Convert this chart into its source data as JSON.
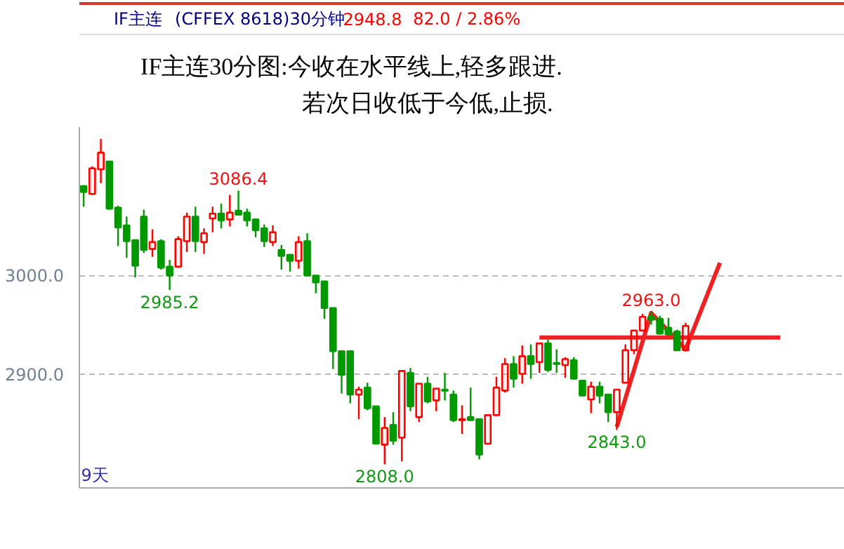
{
  "chart_data": {
    "type": "candlestick",
    "title": "IF主连30分图:今收在水平线上,轻多跟进.",
    "subtitle": "若次日收低于今低,止损.",
    "annotations": [
      "IF主连",
      "(CFFEX 8618)30分钟",
      "2948.8",
      "82.0 / 2.86%",
      "9天",
      {
        "text": "3086.4",
        "y": 3086.4
      },
      {
        "text": "2985.2",
        "y": 2985.2
      },
      {
        "text": "2808.0",
        "y": 2808.0
      },
      {
        "text": "2843.0",
        "y": 2843.0
      },
      {
        "text": "2963.0",
        "y": 2963.0
      }
    ],
    "categories": [
      null,
      null,
      null,
      null,
      null,
      null,
      null,
      null,
      null,
      null,
      null,
      null,
      null,
      null,
      null,
      null,
      null,
      null,
      null,
      null,
      null,
      null,
      null,
      null,
      null,
      null,
      null,
      null,
      null,
      null,
      null,
      null,
      null,
      null,
      null,
      null,
      null,
      null,
      null,
      null,
      null,
      null,
      null,
      null,
      null,
      null,
      null,
      null,
      null,
      null,
      null,
      null,
      null,
      null,
      null,
      null,
      null,
      null,
      null,
      null,
      null,
      null,
      null,
      null,
      null,
      null,
      null,
      null,
      null,
      null,
      null,
      null,
      null,
      null,
      null,
      null,
      null,
      null,
      null,
      null,
      null,
      null,
      null,
      null,
      null,
      null,
      null,
      null,
      null
    ],
    "ohlc": [
      [
        3091,
        3091,
        3070,
        3085
      ],
      [
        3083,
        3111,
        3082,
        3109
      ],
      [
        3108,
        3139,
        3094,
        3125
      ],
      [
        3116,
        3116,
        3067,
        3068
      ],
      [
        3069,
        3071,
        3030,
        3049
      ],
      [
        3051,
        3060,
        3018,
        3035
      ],
      [
        3036,
        3036,
        2998,
        3010
      ],
      [
        3060,
        3067,
        3023,
        3026
      ],
      [
        3027,
        3047,
        3019,
        3034
      ],
      [
        3035,
        3037,
        3006,
        3008
      ],
      [
        3009,
        3016,
        2985.2,
        3000
      ],
      [
        3009,
        3040,
        3008,
        3037
      ],
      [
        3035,
        3064,
        3024,
        3060
      ],
      [
        3060,
        3070,
        3024,
        3035
      ],
      [
        3034,
        3048,
        3022,
        3043
      ],
      [
        3058,
        3070,
        3044,
        3063
      ],
      [
        3063,
        3073,
        3048,
        3056
      ],
      [
        3057,
        3082,
        3050,
        3064
      ],
      [
        3066,
        3086.4,
        3061,
        3062
      ],
      [
        3064,
        3068,
        3050,
        3056
      ],
      [
        3057,
        3057,
        3039,
        3046
      ],
      [
        3048,
        3052,
        3029,
        3035
      ],
      [
        3034,
        3051,
        3030,
        3044
      ],
      [
        3026,
        3031,
        3006,
        3020
      ],
      [
        3021,
        3022,
        3004,
        3015
      ],
      [
        3015,
        3040,
        3007,
        3034
      ],
      [
        3035,
        3043,
        3000,
        3000
      ],
      [
        3000,
        3000,
        2982,
        2993
      ],
      [
        2994,
        2994,
        2956,
        2967
      ],
      [
        2967,
        2967,
        2905,
        2923
      ],
      [
        2923,
        2923,
        2880,
        2899
      ],
      [
        2923,
        2923,
        2870,
        2879
      ],
      [
        2879,
        2887,
        2854,
        2884
      ],
      [
        2886,
        2891,
        2863,
        2865
      ],
      [
        2867,
        2867,
        2829,
        2829
      ],
      [
        2828,
        2856,
        2808.0,
        2845
      ],
      [
        2848,
        2861,
        2828,
        2832
      ],
      [
        2835,
        2903,
        2811,
        2903
      ],
      [
        2901,
        2906,
        2862,
        2867
      ],
      [
        2856,
        2890,
        2851,
        2890
      ],
      [
        2890,
        2897,
        2870,
        2872
      ],
      [
        2873,
        2885,
        2862,
        2885
      ],
      [
        2884,
        2901,
        2873,
        2883
      ],
      [
        2879,
        2883,
        2851,
        2853
      ],
      [
        2853,
        2868,
        2839,
        2854
      ],
      [
        2856,
        2886,
        2853,
        2853
      ],
      [
        2854,
        2854,
        2813,
        2818
      ],
      [
        2829,
        2858,
        2829,
        2858
      ],
      [
        2858,
        2897,
        2858,
        2886
      ],
      [
        2883,
        2916,
        2881,
        2910
      ],
      [
        2910,
        2918,
        2886,
        2895
      ],
      [
        2900,
        2929,
        2890,
        2918
      ],
      [
        2918,
        2930,
        2895,
        2910
      ],
      [
        2912,
        2931,
        2901,
        2931
      ],
      [
        2931,
        2935,
        2902,
        2904
      ],
      [
        2911,
        2925,
        2901,
        2910
      ],
      [
        2909,
        2917,
        2896,
        2915
      ],
      [
        2914,
        2917,
        2895,
        2895
      ],
      [
        2893,
        2894,
        2878,
        2878
      ],
      [
        2874,
        2892,
        2860,
        2887
      ],
      [
        2887,
        2892,
        2870,
        2878
      ],
      [
        2879,
        2879,
        2851,
        2861
      ],
      [
        2861,
        2884,
        2843.0,
        2884
      ],
      [
        2891,
        2930,
        2891,
        2924
      ],
      [
        2924,
        2944,
        2920,
        2944
      ],
      [
        2944,
        2961,
        2944,
        2958
      ],
      [
        2958,
        2963.0,
        2950,
        2955
      ],
      [
        2956,
        2959,
        2940,
        2941
      ],
      [
        2947,
        2957,
        2939,
        2940
      ],
      [
        2943,
        2945,
        2924,
        2924
      ],
      [
        2924,
        2952,
        2923,
        2948.8
      ],
      null,
      null,
      null,
      null,
      null,
      null,
      null,
      null,
      null,
      null,
      null,
      null,
      null,
      null,
      null,
      null,
      null,
      null
    ],
    "colors": [
      "#009900",
      "#ff0000",
      "#ff0000",
      "#009900",
      "#009900",
      "#009900",
      "#009900",
      "#009900",
      "#ff0000",
      "#009900",
      "#009900",
      "#ff0000",
      "#ff0000",
      "#009900",
      "#ff0000",
      "#ff0000",
      "#009900",
      "#ff0000",
      "#009900",
      "#009900",
      "#009900",
      "#009900",
      "#ff0000",
      "#009900",
      "#009900",
      "#ff0000",
      "#009900",
      "#009900",
      "#009900",
      "#009900",
      "#009900",
      "#009900",
      "#ff0000",
      "#009900",
      "#009900",
      "#ff0000",
      "#009900",
      "#ff0000",
      "#009900",
      "#ff0000",
      "#009900",
      "#ff0000",
      "#009900",
      "#009900",
      "#ff0000",
      "#009900",
      "#009900",
      "#ff0000",
      "#ff0000",
      "#ff0000",
      "#009900",
      "#ff0000",
      "#009900",
      "#ff0000",
      "#009900",
      "#009900",
      "#ff0000",
      "#009900",
      "#009900",
      "#ff0000",
      "#009900",
      "#009900",
      "#ff0000",
      "#ff0000",
      "#ff0000",
      "#ff0000",
      "#009900",
      "#009900",
      "#009900",
      "#009900",
      "#ff0000",
      null,
      null,
      null,
      null,
      null,
      null,
      null,
      null,
      null,
      null,
      null,
      null,
      null,
      null,
      null,
      null,
      null,
      null
    ],
    "series": [
      {
        "type": "line",
        "color": "#ee2222",
        "values": [
          null,
          null,
          null,
          null,
          null,
          null,
          null,
          null,
          null,
          null,
          null,
          null,
          null,
          null,
          null,
          null,
          null,
          null,
          null,
          null,
          null,
          null,
          null,
          null,
          null,
          null,
          null,
          null,
          null,
          null,
          null,
          null,
          null,
          null,
          null,
          null,
          null,
          null,
          null,
          null,
          null,
          null,
          null,
          null,
          null,
          null,
          null,
          null,
          null,
          null,
          null,
          null,
          null,
          2937,
          2937,
          2937,
          2937,
          2937,
          2937,
          2937,
          2937,
          2937,
          2937,
          2937,
          2937,
          2937,
          2937,
          2937,
          2937,
          2937,
          2937,
          2937,
          2937,
          2937,
          2937,
          2937,
          2937,
          2937,
          2937,
          2937,
          2937,
          2937,
          null,
          null,
          null,
          null,
          null,
          null,
          null
        ]
      },
      {
        "type": "line",
        "color": "#ee2222",
        "values": [
          null,
          null,
          null,
          null,
          null,
          null,
          null,
          null,
          null,
          null,
          null,
          null,
          null,
          null,
          null,
          null,
          null,
          null,
          null,
          null,
          null,
          null,
          null,
          null,
          null,
          null,
          null,
          null,
          null,
          null,
          null,
          null,
          null,
          null,
          null,
          null,
          null,
          null,
          null,
          null,
          null,
          null,
          null,
          null,
          null,
          null,
          null,
          null,
          null,
          null,
          null,
          null,
          null,
          null,
          null,
          null,
          null,
          null,
          null,
          null,
          null,
          null,
          2846,
          null,
          null,
          null,
          2962,
          null,
          null,
          null,
          2925,
          null,
          null,
          null,
          3013,
          null,
          null,
          null,
          null,
          null,
          null,
          null,
          null,
          null,
          null,
          null,
          null,
          null,
          null
        ]
      }
    ],
    "ylim": [
      2784,
      3151
    ],
    "yticks": [
      {
        "value": 3000,
        "label": "3000.0"
      },
      {
        "value": 2900,
        "label": "2900.0"
      }
    ],
    "grid": "y",
    "tick_labels": "y"
  }
}
